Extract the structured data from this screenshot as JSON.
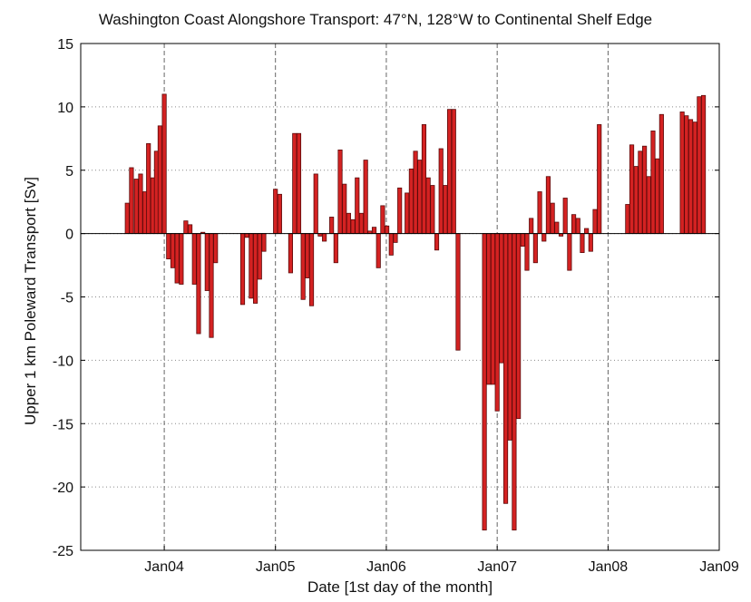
{
  "chart_data": {
    "type": "bar",
    "title": "Washington Coast  Alongshore Transport: 47°N, 128°W to Continental Shelf Edge",
    "xlabel": "Date [1st day of the month]",
    "ylabel": "Upper 1 km Poleward Transport [Sv]",
    "ylim": [
      -25,
      15
    ],
    "xlim": [
      "2003-04-01",
      "2009-01-01"
    ],
    "grid": true,
    "bar_color": "#d42222",
    "y_ticks": [
      -25,
      -20,
      -15,
      -10,
      -5,
      0,
      5,
      10,
      15
    ],
    "x_ticks": [
      {
        "date": "2004-01-01",
        "label": "Jan04"
      },
      {
        "date": "2005-01-01",
        "label": "Jan05"
      },
      {
        "date": "2006-01-01",
        "label": "Jan06"
      },
      {
        "date": "2007-01-01",
        "label": "Jan07"
      },
      {
        "date": "2008-01-01",
        "label": "Jan08"
      },
      {
        "date": "2009-01-01",
        "label": "Jan09"
      }
    ],
    "points": [
      {
        "date": "2003-09-01",
        "value": 2.4
      },
      {
        "date": "2003-09-15",
        "value": 5.2
      },
      {
        "date": "2003-10-01",
        "value": 4.3
      },
      {
        "date": "2003-10-15",
        "value": 4.7
      },
      {
        "date": "2003-10-29",
        "value": 3.3
      },
      {
        "date": "2003-11-10",
        "value": 7.1
      },
      {
        "date": "2003-11-24",
        "value": 4.4
      },
      {
        "date": "2003-12-06",
        "value": 6.5
      },
      {
        "date": "2003-12-18",
        "value": 8.5
      },
      {
        "date": "2004-01-01",
        "value": 11.0
      },
      {
        "date": "2004-01-15",
        "value": -2.0
      },
      {
        "date": "2004-01-29",
        "value": -2.7
      },
      {
        "date": "2004-02-12",
        "value": -3.9
      },
      {
        "date": "2004-02-26",
        "value": -4.0
      },
      {
        "date": "2004-03-12",
        "value": 1.0
      },
      {
        "date": "2004-03-26",
        "value": 0.7
      },
      {
        "date": "2004-04-09",
        "value": -4.0
      },
      {
        "date": "2004-04-23",
        "value": -7.9
      },
      {
        "date": "2004-05-07",
        "value": 0.1
      },
      {
        "date": "2004-05-21",
        "value": -4.5
      },
      {
        "date": "2004-06-04",
        "value": -8.2
      },
      {
        "date": "2004-06-18",
        "value": -2.3
      },
      {
        "date": "2004-09-15",
        "value": -5.6
      },
      {
        "date": "2004-09-29",
        "value": -0.3
      },
      {
        "date": "2004-10-13",
        "value": -5.1
      },
      {
        "date": "2004-10-27",
        "value": -5.5
      },
      {
        "date": "2004-11-10",
        "value": -3.6
      },
      {
        "date": "2004-11-24",
        "value": -1.4
      },
      {
        "date": "2005-01-01",
        "value": 3.5
      },
      {
        "date": "2005-01-15",
        "value": 3.1
      },
      {
        "date": "2005-02-20",
        "value": -3.1
      },
      {
        "date": "2005-03-05",
        "value": 7.9
      },
      {
        "date": "2005-03-19",
        "value": 7.9
      },
      {
        "date": "2005-04-02",
        "value": -5.2
      },
      {
        "date": "2005-04-16",
        "value": -3.5
      },
      {
        "date": "2005-04-30",
        "value": -5.7
      },
      {
        "date": "2005-05-14",
        "value": 4.7
      },
      {
        "date": "2005-05-28",
        "value": -0.2
      },
      {
        "date": "2005-06-11",
        "value": -0.6
      },
      {
        "date": "2005-07-05",
        "value": 1.3
      },
      {
        "date": "2005-07-19",
        "value": -2.3
      },
      {
        "date": "2005-08-02",
        "value": 6.6
      },
      {
        "date": "2005-08-16",
        "value": 3.9
      },
      {
        "date": "2005-08-30",
        "value": 1.6
      },
      {
        "date": "2005-09-13",
        "value": 1.1
      },
      {
        "date": "2005-09-27",
        "value": 4.4
      },
      {
        "date": "2005-10-11",
        "value": 1.6
      },
      {
        "date": "2005-10-25",
        "value": 5.8
      },
      {
        "date": "2005-11-08",
        "value": 0.2
      },
      {
        "date": "2005-11-22",
        "value": 0.5
      },
      {
        "date": "2005-12-06",
        "value": -2.7
      },
      {
        "date": "2005-12-20",
        "value": 2.2
      },
      {
        "date": "2006-01-03",
        "value": 0.6
      },
      {
        "date": "2006-01-17",
        "value": -1.7
      },
      {
        "date": "2006-01-31",
        "value": -0.7
      },
      {
        "date": "2006-02-14",
        "value": 3.6
      },
      {
        "date": "2006-03-10",
        "value": 3.2
      },
      {
        "date": "2006-03-24",
        "value": 5.1
      },
      {
        "date": "2006-04-07",
        "value": 6.5
      },
      {
        "date": "2006-04-21",
        "value": 5.8
      },
      {
        "date": "2006-05-05",
        "value": 8.6
      },
      {
        "date": "2006-05-19",
        "value": 4.4
      },
      {
        "date": "2006-06-02",
        "value": 3.8
      },
      {
        "date": "2006-06-16",
        "value": -1.3
      },
      {
        "date": "2006-06-30",
        "value": 6.7
      },
      {
        "date": "2006-07-14",
        "value": 3.8
      },
      {
        "date": "2006-07-28",
        "value": 9.8
      },
      {
        "date": "2006-08-11",
        "value": 9.8
      },
      {
        "date": "2006-08-25",
        "value": -9.2
      },
      {
        "date": "2006-11-20",
        "value": -23.4
      },
      {
        "date": "2006-12-04",
        "value": -11.9
      },
      {
        "date": "2006-12-18",
        "value": -11.9
      },
      {
        "date": "2007-01-01",
        "value": -14.0
      },
      {
        "date": "2007-01-15",
        "value": -10.2
      },
      {
        "date": "2007-01-29",
        "value": -21.3
      },
      {
        "date": "2007-02-12",
        "value": -16.3
      },
      {
        "date": "2007-02-26",
        "value": -23.4
      },
      {
        "date": "2007-03-12",
        "value": -14.6
      },
      {
        "date": "2007-03-26",
        "value": -1.0
      },
      {
        "date": "2007-04-09",
        "value": -2.9
      },
      {
        "date": "2007-04-23",
        "value": 1.2
      },
      {
        "date": "2007-05-07",
        "value": -2.3
      },
      {
        "date": "2007-05-21",
        "value": 3.3
      },
      {
        "date": "2007-06-04",
        "value": -0.6
      },
      {
        "date": "2007-06-18",
        "value": 4.5
      },
      {
        "date": "2007-07-02",
        "value": 2.4
      },
      {
        "date": "2007-07-16",
        "value": 0.9
      },
      {
        "date": "2007-07-30",
        "value": -0.2
      },
      {
        "date": "2007-08-13",
        "value": 2.8
      },
      {
        "date": "2007-08-27",
        "value": -2.9
      },
      {
        "date": "2007-09-10",
        "value": 1.5
      },
      {
        "date": "2007-09-24",
        "value": 1.2
      },
      {
        "date": "2007-10-08",
        "value": -1.5
      },
      {
        "date": "2007-10-22",
        "value": 0.4
      },
      {
        "date": "2007-11-05",
        "value": -1.4
      },
      {
        "date": "2007-11-19",
        "value": 1.9
      },
      {
        "date": "2007-12-03",
        "value": 8.6
      },
      {
        "date": "2008-03-05",
        "value": 2.3
      },
      {
        "date": "2008-03-19",
        "value": 7.0
      },
      {
        "date": "2008-04-02",
        "value": 5.3
      },
      {
        "date": "2008-04-16",
        "value": 6.5
      },
      {
        "date": "2008-04-30",
        "value": 6.9
      },
      {
        "date": "2008-05-14",
        "value": 4.5
      },
      {
        "date": "2008-05-28",
        "value": 8.1
      },
      {
        "date": "2008-06-11",
        "value": 5.9
      },
      {
        "date": "2008-06-25",
        "value": 9.4
      },
      {
        "date": "2008-09-01",
        "value": 9.6
      },
      {
        "date": "2008-09-15",
        "value": 9.3
      },
      {
        "date": "2008-09-29",
        "value": 9.0
      },
      {
        "date": "2008-10-13",
        "value": 8.8
      },
      {
        "date": "2008-10-27",
        "value": 10.8
      },
      {
        "date": "2008-11-10",
        "value": 10.9
      }
    ]
  }
}
